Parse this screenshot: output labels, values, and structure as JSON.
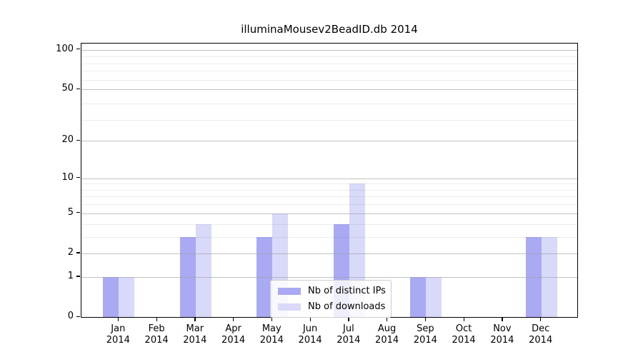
{
  "chart_data": {
    "type": "bar",
    "title": "illuminaMousev2BeadID.db 2014",
    "categories": [
      "Jan",
      "Feb",
      "Mar",
      "Apr",
      "May",
      "Jun",
      "Jul",
      "Aug",
      "Sep",
      "Oct",
      "Nov",
      "Dec"
    ],
    "year_label": "2014",
    "series": [
      {
        "name": "Nb of distinct IPs",
        "color": "#a9a9f4",
        "values": [
          1,
          0,
          3,
          0,
          3,
          0,
          4,
          0,
          1,
          0,
          0,
          3
        ]
      },
      {
        "name": "Nb of downloads",
        "color": "#d9d9fa",
        "values": [
          1,
          0,
          4,
          0,
          5,
          0,
          9,
          0,
          1,
          0,
          0,
          3
        ]
      }
    ],
    "yscale": "log10(1+x)",
    "ytick_values": [
      0,
      1,
      2,
      5,
      10,
      20,
      50,
      100
    ],
    "ytick_labels": [
      "0",
      "1",
      "2",
      "5",
      "10",
      "20",
      "50",
      "100"
    ],
    "minor_gridline_values": [
      3,
      4,
      6,
      7,
      8,
      9,
      29,
      39,
      59,
      69,
      79,
      89
    ],
    "ylim": [
      0,
      114
    ],
    "grid": "on",
    "legend_position": "lower center"
  }
}
